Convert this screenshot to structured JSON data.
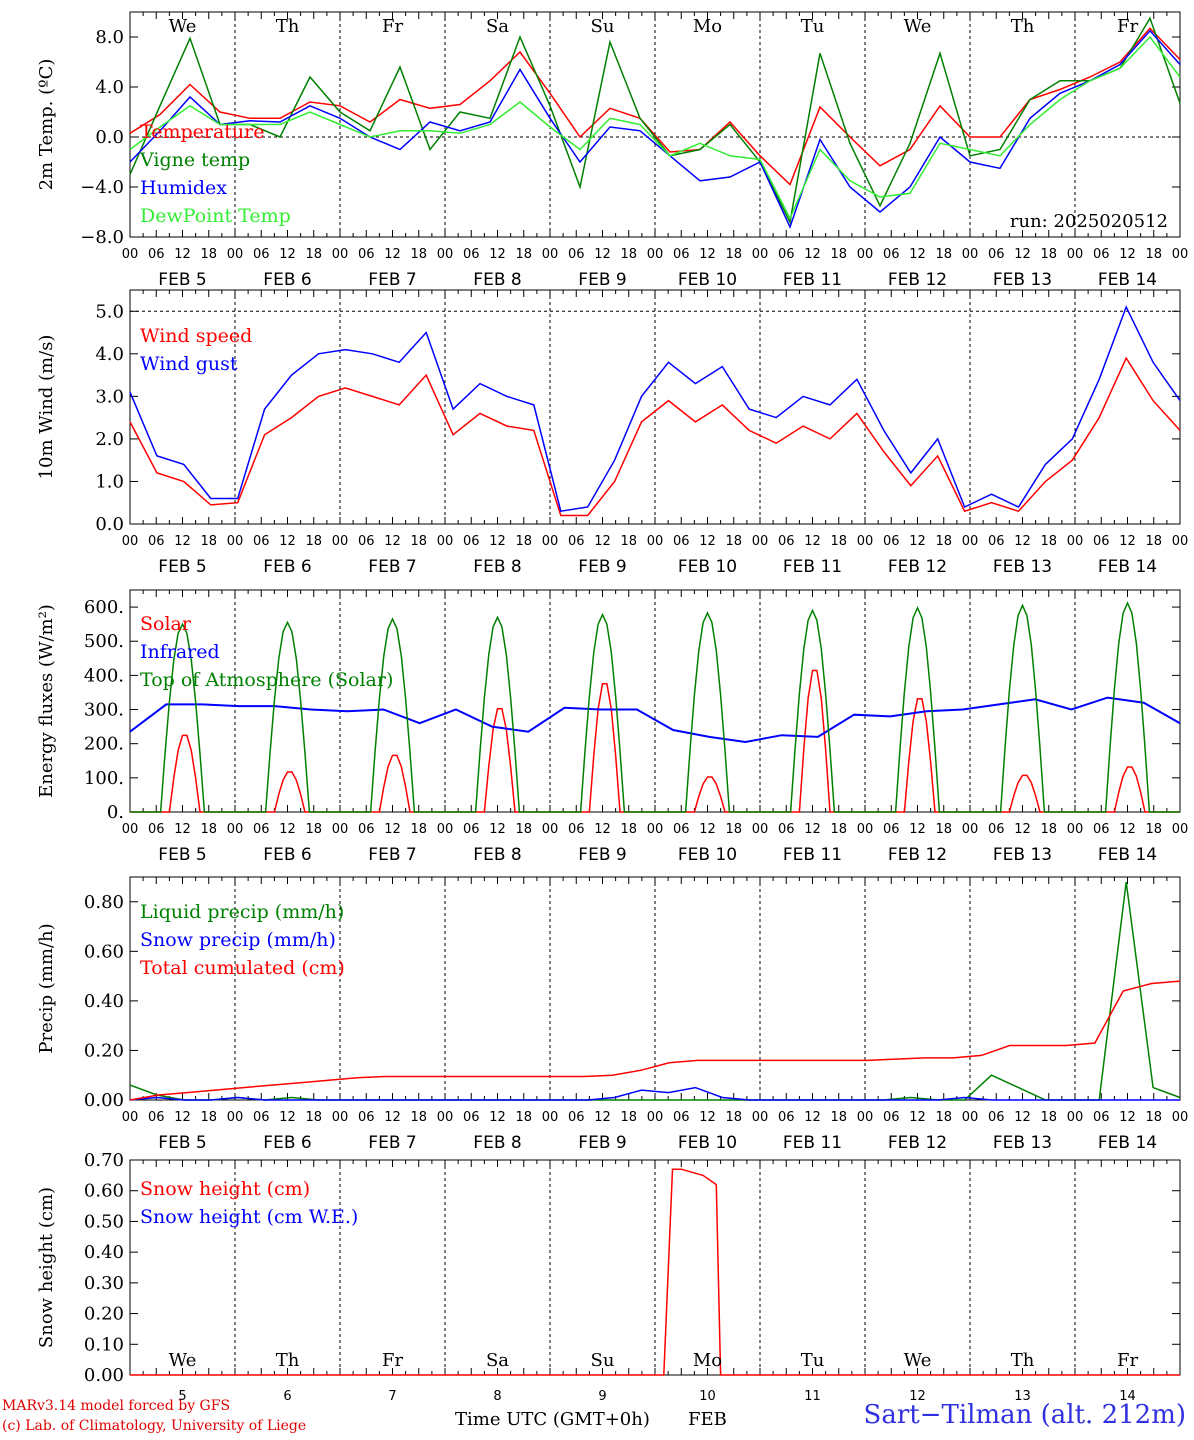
{
  "colors": {
    "red": "#ff0000",
    "green": "#008000",
    "blue": "#0000ff",
    "lightgreen": "#33ee33"
  },
  "days": [
    "We",
    "Th",
    "Fr",
    "Sa",
    "Su",
    "Mo",
    "Tu",
    "We",
    "Th",
    "Fr"
  ],
  "day_colors": [
    "#000000",
    "#000000",
    "#000000",
    "#ff0000",
    "#ff0000",
    "#000000",
    "#000000",
    "#000000",
    "#000000",
    "#000000"
  ],
  "dates": [
    "FEB  5",
    "FEB  6",
    "FEB  7",
    "FEB  8",
    "FEB  9",
    "FEB 10",
    "FEB 11",
    "FEB 12",
    "FEB 13",
    "FEB 14"
  ],
  "hour_ticks": [
    "00",
    "06",
    "12",
    "18"
  ],
  "hour_tick_end": "00",
  "bottom_axis": {
    "day_numbers": [
      "5",
      "6",
      "7",
      "8",
      "9",
      "10",
      "11",
      "12",
      "13",
      "14"
    ],
    "xlabel": "Time UTC (GMT+0h)",
    "month": "FEB"
  },
  "footer": {
    "model": "MARv3.14 model forced by GFS",
    "copyright": "(c) Lab. of Climatology, University of Liege",
    "station": "Sart−Tilman (alt. 212m)"
  },
  "chart_data": [
    {
      "type": "line",
      "ylabel": "2m Temp. (ºC)",
      "ylim": [
        -8.0,
        10.0
      ],
      "yticks": [
        "8.0",
        "4.0",
        "0.0",
        "−4.0",
        "−8.0"
      ],
      "ytick_values": [
        8,
        4,
        0,
        -4,
        -8
      ],
      "dashed_zero": 0,
      "annotation": "run: 2025020512",
      "x_hours": [
        0,
        6,
        12,
        18,
        24,
        30,
        36,
        42,
        48,
        54,
        60,
        66,
        72,
        78,
        84,
        90,
        96,
        102,
        108,
        114,
        120,
        126,
        132,
        138,
        144,
        150,
        156,
        162,
        168,
        174,
        180,
        186,
        192,
        198,
        204,
        210,
        216,
        222,
        228,
        234,
        240
      ],
      "series": [
        {
          "name": "Temperature",
          "color": "#ff0000",
          "values": [
            0.3,
            1.8,
            4.2,
            2.0,
            1.5,
            1.5,
            2.8,
            2.5,
            1.2,
            3.0,
            2.3,
            2.6,
            4.5,
            6.8,
            3.5,
            0.0,
            2.3,
            1.5,
            -1.2,
            -1.0,
            1.2,
            -1.5,
            -3.8,
            2.4,
            0.0,
            -2.3,
            -1.0,
            2.5,
            0.0,
            0.0,
            3.0,
            3.8,
            4.8,
            6.0,
            8.7,
            6.2
          ]
        },
        {
          "name": "Vigne temp",
          "color": "#008000",
          "values": [
            -3.0,
            2.5,
            7.9,
            1.0,
            1.0,
            0.0,
            4.8,
            2.0,
            0.5,
            5.6,
            -1.0,
            2.0,
            1.5,
            8.0,
            2.5,
            -4.0,
            7.6,
            1.5,
            -1.5,
            -1.0,
            1.0,
            -2.0,
            -6.8,
            6.7,
            -0.5,
            -5.5,
            -0.5,
            6.7,
            -1.5,
            -1.0,
            3.0,
            4.5,
            4.5,
            5.5,
            9.5,
            2.7
          ]
        },
        {
          "name": "Humidex",
          "color": "#0000ff",
          "values": [
            -2.0,
            0.5,
            3.2,
            1.0,
            1.3,
            1.2,
            2.5,
            1.5,
            0.0,
            -1.0,
            1.2,
            0.5,
            1.2,
            5.4,
            1.5,
            -2.0,
            0.8,
            0.5,
            -1.5,
            -3.5,
            -3.2,
            -2.0,
            -7.2,
            -0.2,
            -4.0,
            -6.0,
            -4.0,
            0.0,
            -2.0,
            -2.5,
            1.5,
            3.5,
            4.5,
            5.8,
            8.5,
            5.8
          ]
        },
        {
          "name": "DewPoint Temp",
          "color": "#33ee33",
          "values": [
            -1.0,
            0.8,
            2.5,
            1.0,
            1.0,
            1.0,
            2.0,
            1.0,
            0.0,
            0.5,
            0.5,
            0.3,
            1.0,
            2.8,
            0.8,
            -1.0,
            1.5,
            1.0,
            -1.5,
            -0.5,
            -1.5,
            -1.8,
            -6.5,
            -1.0,
            -3.5,
            -4.8,
            -4.5,
            -0.5,
            -1.0,
            -1.5,
            1.0,
            3.0,
            4.5,
            5.5,
            8.0,
            4.8
          ]
        }
      ]
    },
    {
      "type": "line",
      "ylabel": "10m Wind (m/s)",
      "ylim": [
        0.0,
        5.5
      ],
      "yticks": [
        "5.0",
        "4.0",
        "3.0",
        "2.0",
        "1.0",
        "0.0"
      ],
      "ytick_values": [
        5,
        4,
        3,
        2,
        1,
        0
      ],
      "dashed_top": 5.0,
      "series": [
        {
          "name": "Wind speed",
          "color": "#ff0000",
          "values": [
            2.4,
            1.2,
            1.0,
            0.45,
            0.5,
            2.1,
            2.5,
            3.0,
            3.2,
            3.0,
            2.8,
            3.5,
            2.1,
            2.6,
            2.3,
            2.2,
            0.2,
            0.2,
            1.0,
            2.4,
            2.9,
            2.4,
            2.8,
            2.2,
            1.9,
            2.3,
            2.0,
            2.6,
            1.7,
            0.9,
            1.6,
            0.3,
            0.5,
            0.3,
            1.0,
            1.5,
            2.5,
            3.9,
            2.9,
            2.2
          ]
        },
        {
          "name": "Wind gust",
          "color": "#0000ff",
          "values": [
            3.1,
            1.6,
            1.4,
            0.6,
            0.6,
            2.7,
            3.5,
            4.0,
            4.1,
            4.0,
            3.8,
            4.5,
            2.7,
            3.3,
            3.0,
            2.8,
            0.3,
            0.4,
            1.5,
            3.0,
            3.8,
            3.3,
            3.7,
            2.7,
            2.5,
            3.0,
            2.8,
            3.4,
            2.2,
            1.2,
            2.0,
            0.4,
            0.7,
            0.4,
            1.4,
            2.0,
            3.4,
            5.1,
            3.8,
            2.9
          ]
        }
      ]
    },
    {
      "type": "line",
      "ylabel": "Energy fluxes (W/m²)",
      "ylim": [
        0,
        650
      ],
      "yticks": [
        "600.",
        "500.",
        "400.",
        "300.",
        "200.",
        "100.",
        "0."
      ],
      "ytick_values": [
        600,
        500,
        400,
        300,
        200,
        100,
        0
      ],
      "series": [
        {
          "name": "Solar",
          "color": "#ff0000",
          "peaks": [
            230,
            120,
            170,
            310,
            385,
            105,
            425,
            340,
            110,
            135
          ]
        },
        {
          "name": "Infrared",
          "color": "#0000ff",
          "values": [
            235,
            315,
            315,
            310,
            310,
            300,
            295,
            300,
            260,
            300,
            250,
            235,
            305,
            300,
            300,
            240,
            220,
            205,
            225,
            220,
            285,
            280,
            295,
            300,
            315,
            330,
            300,
            335,
            320,
            260
          ]
        },
        {
          "name": "Top of Atmosphere (Solar)",
          "color": "#008000",
          "peaks": [
            550,
            555,
            565,
            570,
            578,
            583,
            590,
            598,
            605,
            612
          ]
        }
      ]
    },
    {
      "type": "line",
      "ylabel": "Precip (mm/h)",
      "ylim": [
        0.0,
        0.9
      ],
      "yticks": [
        "0.80",
        "0.60",
        "0.40",
        "0.20",
        "0.00"
      ],
      "ytick_values": [
        0.8,
        0.6,
        0.4,
        0.2,
        0.0
      ],
      "series": [
        {
          "name": "Liquid precip (mm/h)",
          "color": "#008000",
          "values": [
            0.06,
            0.02,
            0.0,
            0.0,
            0.01,
            0.0,
            0.01,
            0.0,
            0.0,
            0.0,
            0.0,
            0.0,
            0.0,
            0.0,
            0.0,
            0.0,
            0.0,
            0.0,
            0.0,
            0.0,
            0.0,
            0.0,
            0.0,
            0.0,
            0.0,
            0.0,
            0.0,
            0.0,
            0.0,
            0.01,
            0.0,
            0.0,
            0.1,
            0.05,
            0.0,
            0.0,
            0.0,
            0.88,
            0.05,
            0.01
          ]
        },
        {
          "name": "Snow precip (mm/h)",
          "color": "#0000ff",
          "values": [
            0.0,
            0.01,
            0.0,
            0.0,
            0.01,
            0.0,
            0.0,
            0.0,
            0.0,
            0.0,
            0.0,
            0.0,
            0.0,
            0.0,
            0.0,
            0.0,
            0.0,
            0.0,
            0.01,
            0.04,
            0.03,
            0.05,
            0.01,
            0.0,
            0.0,
            0.0,
            0.0,
            0.0,
            0.0,
            0.0,
            0.0,
            0.01,
            0.0,
            0.0,
            0.0,
            0.0,
            0.0,
            0.0,
            0.0,
            0.0
          ]
        },
        {
          "name": "Total cumulated (cm)",
          "color": "#ff0000",
          "values": [
            0.0,
            0.02,
            0.03,
            0.04,
            0.05,
            0.06,
            0.07,
            0.08,
            0.09,
            0.095,
            0.095,
            0.095,
            0.095,
            0.095,
            0.095,
            0.095,
            0.095,
            0.1,
            0.12,
            0.15,
            0.16,
            0.16,
            0.16,
            0.16,
            0.16,
            0.16,
            0.16,
            0.165,
            0.17,
            0.17,
            0.18,
            0.22,
            0.22,
            0.22,
            0.23,
            0.44,
            0.47,
            0.48
          ]
        }
      ]
    },
    {
      "type": "line",
      "ylabel": "Snow height (cm)",
      "ylim": [
        0.0,
        0.7
      ],
      "yticks": [
        "0.70",
        "0.60",
        "0.50",
        "0.40",
        "0.30",
        "0.20",
        "0.10",
        "0.00"
      ],
      "ytick_values": [
        0.7,
        0.6,
        0.5,
        0.4,
        0.3,
        0.2,
        0.1,
        0.0
      ],
      "series": [
        {
          "name": "Snow height (cm)",
          "color": "#ff0000",
          "points": [
            [
              0,
              0
            ],
            [
              122,
              0
            ],
            [
              124,
              0.67
            ],
            [
              126,
              0.67
            ],
            [
              131,
              0.65
            ],
            [
              134,
              0.62
            ],
            [
              135,
              0
            ],
            [
              240,
              0
            ]
          ]
        },
        {
          "name": "Snow height (cm W.E.)",
          "color": "#0000ff",
          "points": []
        }
      ]
    }
  ]
}
